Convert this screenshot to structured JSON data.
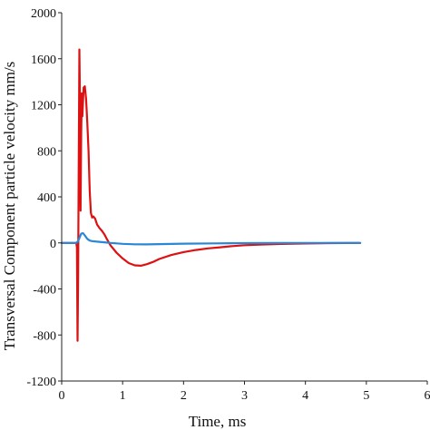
{
  "chart_data": {
    "type": "line",
    "title": "",
    "xlabel": "Time, ms",
    "ylabel": "Transversal Component particle velocity mm/s",
    "xlim": [
      0,
      6
    ],
    "ylim": [
      -1200,
      2000
    ],
    "x_ticks": [
      0,
      1,
      2,
      3,
      4,
      5,
      6
    ],
    "x_tick_labels": [
      "0",
      "1",
      "2",
      "3",
      "4",
      "5",
      "6"
    ],
    "y_ticks": [
      2000,
      1600,
      1200,
      800,
      400,
      0,
      -400,
      -800,
      -1200
    ],
    "y_tick_labels": [
      "2000",
      "1600",
      "1200",
      "800",
      "400",
      "0",
      "-400",
      "-800",
      "-1200"
    ],
    "grid": false,
    "legend": "none",
    "series": [
      {
        "color": "#dd1111",
        "points": [
          [
            0,
            0
          ],
          [
            0.24,
            0
          ],
          [
            0.25,
            -40
          ],
          [
            0.26,
            -850
          ],
          [
            0.27,
            -300
          ],
          [
            0.28,
            700
          ],
          [
            0.29,
            1680
          ],
          [
            0.3,
            1200
          ],
          [
            0.31,
            280
          ],
          [
            0.32,
            950
          ],
          [
            0.33,
            1300
          ],
          [
            0.34,
            1100
          ],
          [
            0.36,
            1350
          ],
          [
            0.38,
            1360
          ],
          [
            0.4,
            1250
          ],
          [
            0.42,
            1050
          ],
          [
            0.44,
            800
          ],
          [
            0.46,
            450
          ],
          [
            0.48,
            260
          ],
          [
            0.5,
            220
          ],
          [
            0.52,
            230
          ],
          [
            0.55,
            210
          ],
          [
            0.58,
            160
          ],
          [
            0.62,
            130
          ],
          [
            0.66,
            105
          ],
          [
            0.7,
            75
          ],
          [
            0.75,
            25
          ],
          [
            0.8,
            -20
          ],
          [
            0.9,
            -85
          ],
          [
            1.0,
            -135
          ],
          [
            1.1,
            -175
          ],
          [
            1.2,
            -195
          ],
          [
            1.3,
            -198
          ],
          [
            1.4,
            -185
          ],
          [
            1.5,
            -165
          ],
          [
            1.6,
            -140
          ],
          [
            1.8,
            -105
          ],
          [
            2.0,
            -80
          ],
          [
            2.2,
            -62
          ],
          [
            2.4,
            -48
          ],
          [
            2.6,
            -38
          ],
          [
            2.8,
            -28
          ],
          [
            3.0,
            -20
          ],
          [
            3.3,
            -14
          ],
          [
            3.6,
            -9
          ],
          [
            4.0,
            -5
          ],
          [
            4.4,
            -2
          ],
          [
            4.9,
            0
          ]
        ]
      },
      {
        "color": "#2a86d6",
        "points": [
          [
            0,
            0
          ],
          [
            0.24,
            0
          ],
          [
            0.27,
            15
          ],
          [
            0.3,
            55
          ],
          [
            0.32,
            80
          ],
          [
            0.35,
            85
          ],
          [
            0.38,
            65
          ],
          [
            0.42,
            35
          ],
          [
            0.46,
            20
          ],
          [
            0.5,
            15
          ],
          [
            0.6,
            10
          ],
          [
            0.7,
            5
          ],
          [
            0.8,
            0
          ],
          [
            1.0,
            -8
          ],
          [
            1.2,
            -12
          ],
          [
            1.4,
            -13
          ],
          [
            1.6,
            -11
          ],
          [
            2.0,
            -7
          ],
          [
            2.5,
            -4
          ],
          [
            3.0,
            -2
          ],
          [
            3.5,
            -1
          ],
          [
            4.0,
            0
          ],
          [
            4.5,
            0
          ],
          [
            4.9,
            0
          ]
        ]
      }
    ]
  }
}
